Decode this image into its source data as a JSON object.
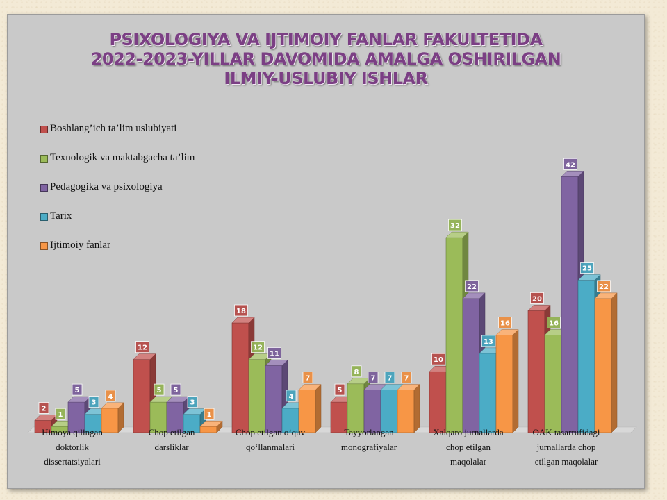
{
  "chart_data": {
    "type": "bar",
    "title": [
      "PSIXOLOGIYA VA IJTIMOIY FANLAR FAKULTETIDA",
      "2022-2023-YILLAR DAVOMIDA AMALGA OSHIRILGAN",
      "ILMIY-USLUBIY ISHLAR"
    ],
    "xlabel": "",
    "ylabel": "",
    "ylim": [
      0,
      45
    ],
    "grid": false,
    "legend_position": "left",
    "categories": [
      [
        "Himoya qilingan",
        "doktorlik",
        "dissertatsiyalari"
      ],
      [
        "Chop etilgan",
        "darsliklar"
      ],
      [
        "Chop etilgan  o‘quv",
        "qo‘llanmalari"
      ],
      [
        "Tayyorlangan",
        "monografiyalar"
      ],
      [
        "Xalqaro jurnallarda",
        "chop etilgan",
        "maqolalar"
      ],
      [
        "OAK tasarrufidagi",
        "jurnallarda chop",
        "etilgan maqolalar"
      ]
    ],
    "series": [
      {
        "name": "Boshlang’ich ta’lim uslubiyati",
        "color": "#c0504d",
        "values": [
          2,
          12,
          18,
          5,
          10,
          20
        ]
      },
      {
        "name": "Texnologik va maktabgacha ta’lim",
        "color": "#9bbb59",
        "values": [
          1,
          5,
          12,
          8,
          32,
          16
        ]
      },
      {
        "name": "Pedagogika va psixologiya",
        "color": "#8064a2",
        "values": [
          5,
          5,
          11,
          7,
          22,
          42
        ]
      },
      {
        "name": "Tarix",
        "color": "#4bacc6",
        "values": [
          3,
          3,
          4,
          7,
          13,
          25
        ]
      },
      {
        "name": "Ijtimoiy fanlar",
        "color": "#f79646",
        "values": [
          4,
          1,
          7,
          7,
          16,
          22
        ]
      }
    ]
  }
}
